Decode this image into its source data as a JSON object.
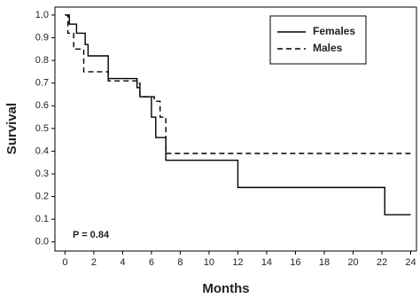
{
  "chart_data": {
    "type": "line",
    "step": "post",
    "xlabel": "Months",
    "ylabel": "Survival",
    "annotation": "P = 0.84",
    "xlim": [
      -0.7,
      24.4
    ],
    "ylim": [
      -0.04,
      1.035
    ],
    "xticks": [
      0,
      2,
      4,
      6,
      8,
      10,
      12,
      14,
      16,
      18,
      20,
      22,
      24
    ],
    "yticks": [
      {
        "value": 0,
        "label": "0.0"
      },
      0.1,
      0.2,
      0.3,
      0.4,
      0.5,
      0.6,
      0.7,
      0.8,
      0.9,
      {
        "value": 1,
        "label": "1.0"
      }
    ],
    "legend": "upper right",
    "series": [
      {
        "name": "Females",
        "color": "#000000",
        "dash": "solid",
        "x": [
          0,
          0.3,
          0.8,
          1.4,
          1.6,
          3,
          5,
          5.2,
          6,
          6.3,
          7,
          12,
          22.2,
          24
        ],
        "values": [
          1.0,
          0.96,
          0.92,
          0.87,
          0.82,
          0.72,
          0.68,
          0.64,
          0.55,
          0.46,
          0.36,
          0.24,
          0.12,
          0.12
        ]
      },
      {
        "name": "Males",
        "color": "#000000",
        "dash": "dashed",
        "x": [
          0,
          0.2,
          0.6,
          1.3,
          3,
          5,
          5.2,
          6.2,
          6.6,
          7,
          24
        ],
        "values": [
          1.0,
          0.92,
          0.85,
          0.75,
          0.71,
          0.7,
          0.64,
          0.62,
          0.55,
          0.39,
          0.39
        ]
      }
    ]
  }
}
